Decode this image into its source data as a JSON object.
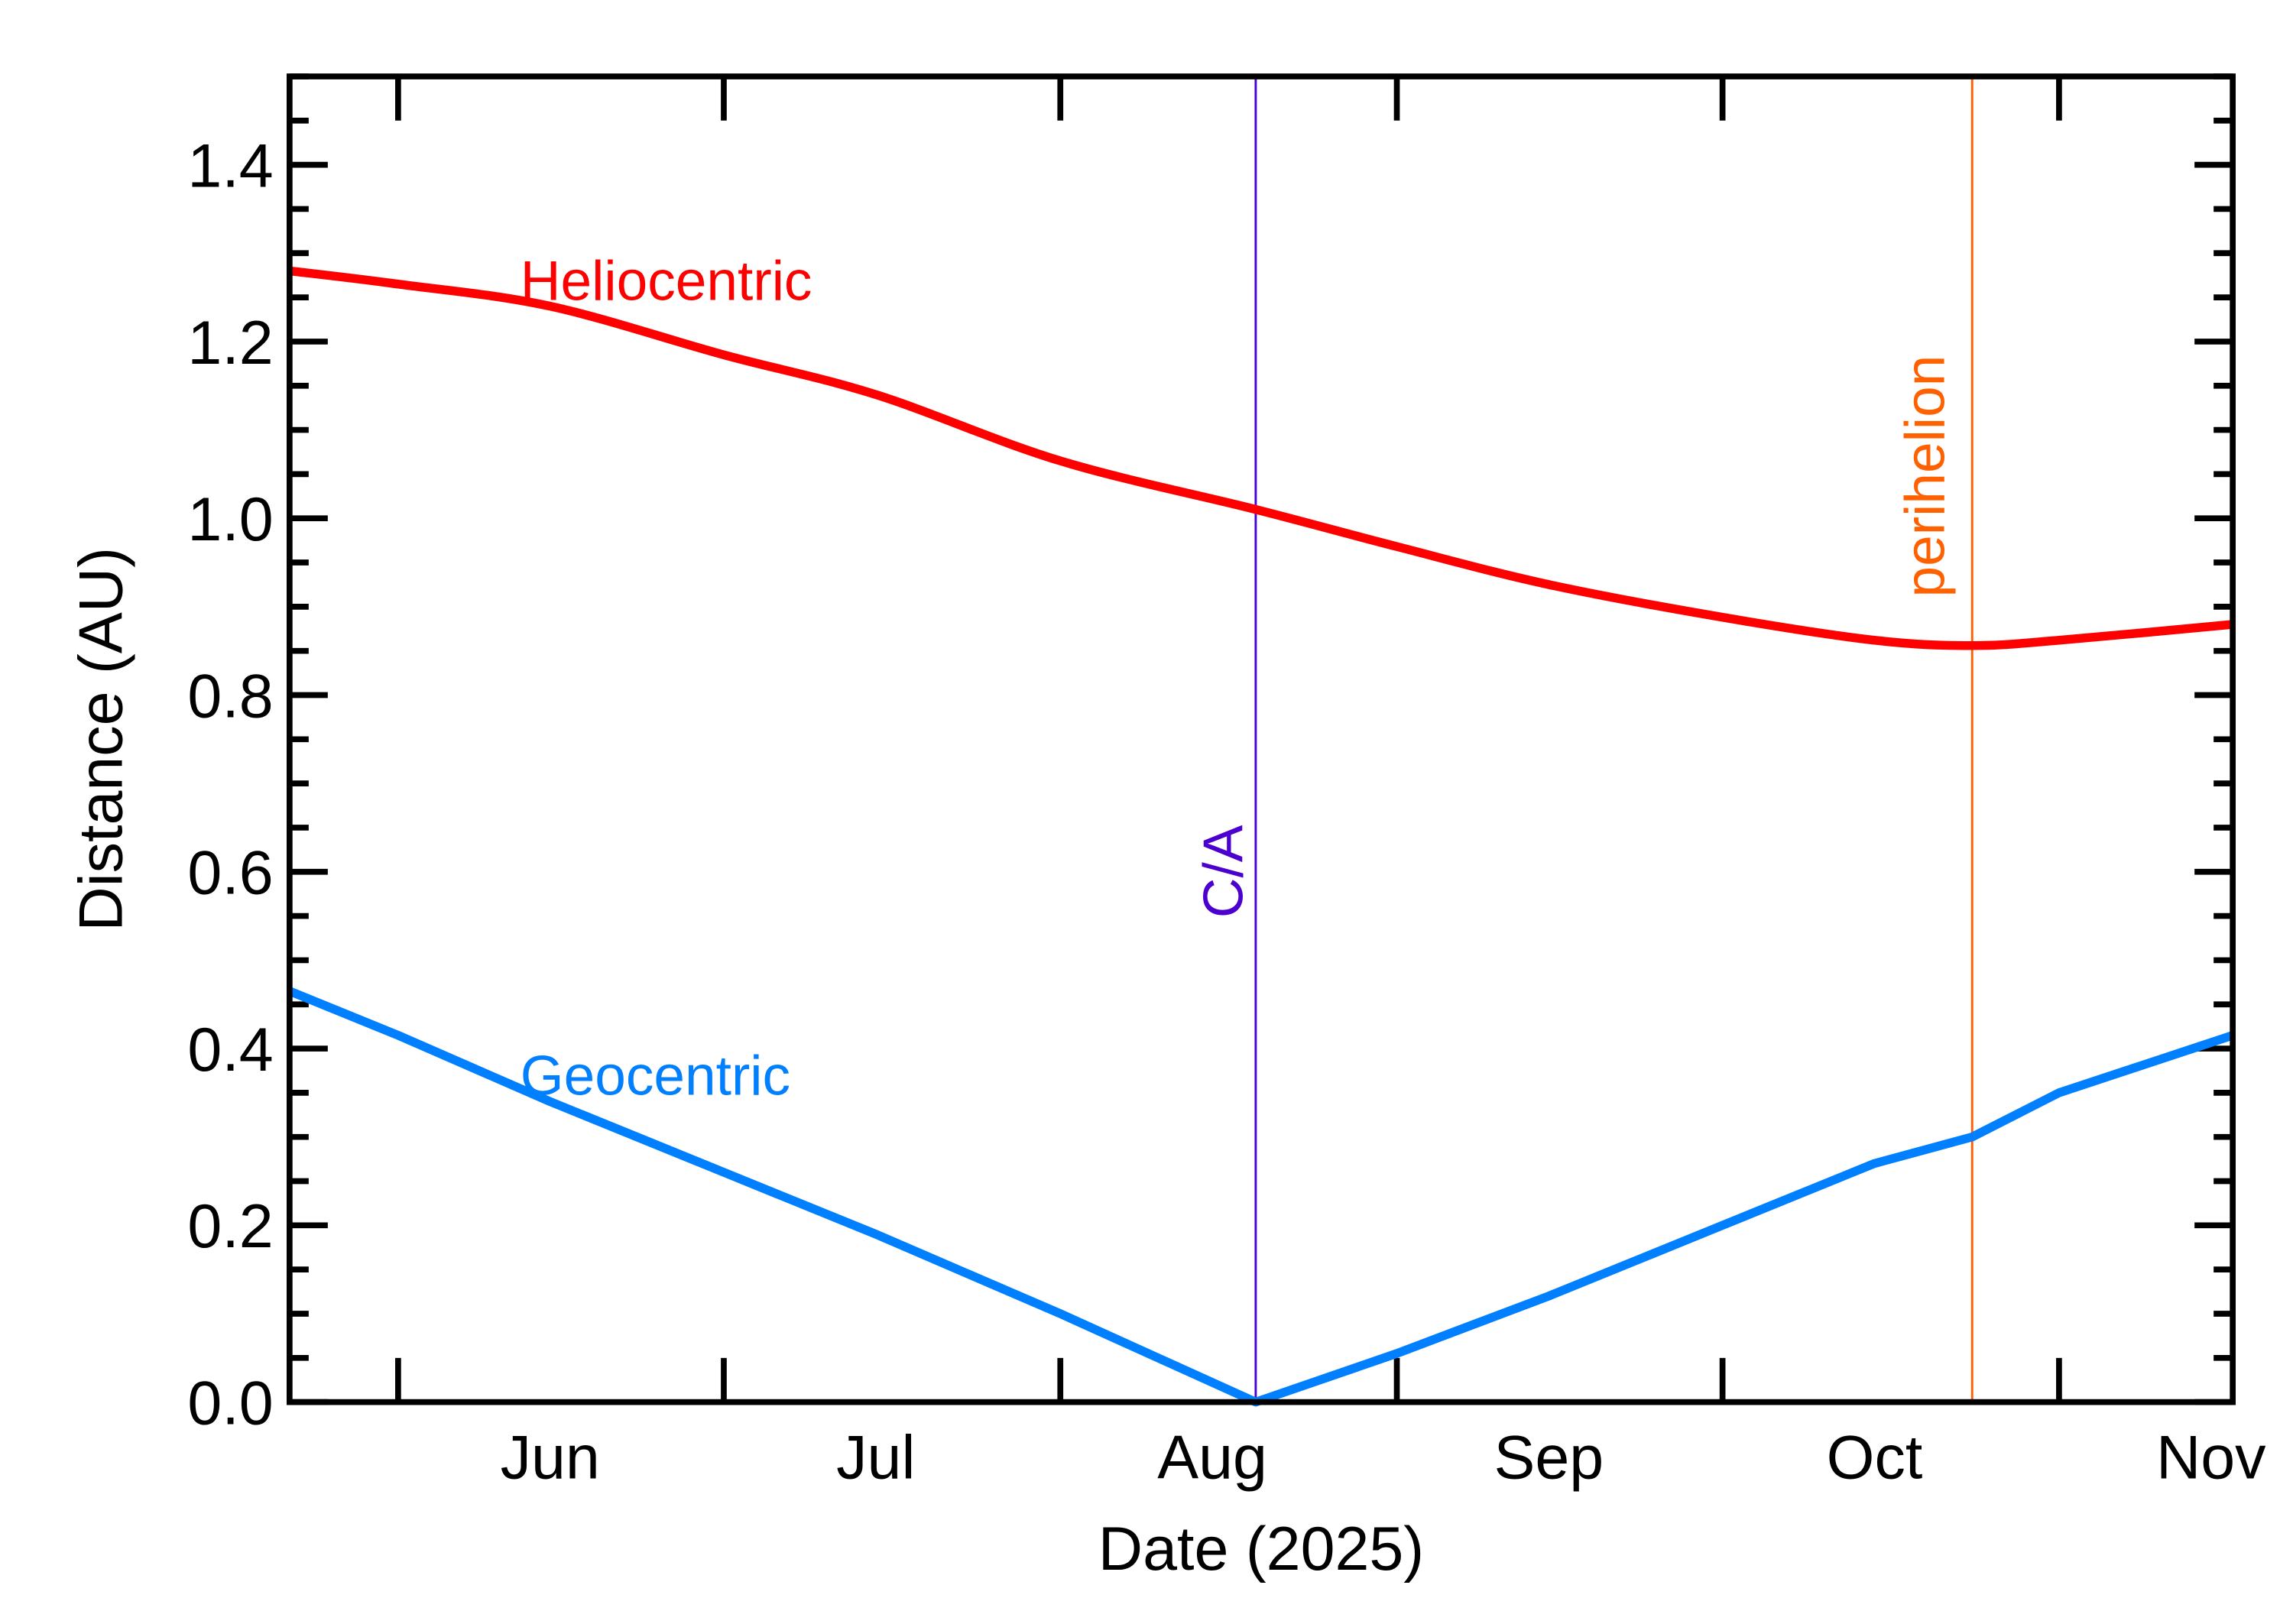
{
  "chart_data": {
    "type": "line",
    "xlabel": "Date (2025)",
    "ylabel": "Distance (AU)",
    "xlim": [
      "2025-05-22",
      "2025-11-17"
    ],
    "ylim": [
      0,
      1.5
    ],
    "grid": false,
    "x_tick_labels": [
      {
        "label": "Jun",
        "date": "2025-06-15"
      },
      {
        "label": "Jul",
        "date": "2025-07-15"
      },
      {
        "label": "Aug",
        "date": "2025-08-15"
      },
      {
        "label": "Sep",
        "date": "2025-09-15"
      },
      {
        "label": "Oct",
        "date": "2025-10-15"
      },
      {
        "label": "Nov",
        "date": "2025-11-15"
      }
    ],
    "x_major_ticks": [
      "2025-06-01",
      "2025-07-01",
      "2025-08-01",
      "2025-09-01",
      "2025-10-01",
      "2025-11-01"
    ],
    "y_tick_labels": [
      "0.0",
      "0.2",
      "0.4",
      "0.6",
      "0.8",
      "1.0",
      "1.2",
      "1.4"
    ],
    "x": [
      "2025-05-22",
      "2025-06-01",
      "2025-06-15",
      "2025-07-01",
      "2025-07-15",
      "2025-08-01",
      "2025-08-19",
      "2025-09-01",
      "2025-09-15",
      "2025-10-01",
      "2025-10-15",
      "2025-10-24",
      "2025-11-01",
      "2025-11-17"
    ],
    "series": [
      {
        "name": "Heliocentric",
        "color": "#ff0000",
        "values": [
          1.28,
          1.265,
          1.24,
          1.185,
          1.14,
          1.065,
          1.01,
          0.968,
          0.925,
          0.888,
          0.862,
          0.856,
          0.862,
          0.88
        ]
      },
      {
        "name": "Geocentric",
        "color": "#0080ff",
        "values": [
          0.465,
          0.415,
          0.34,
          0.26,
          0.19,
          0.1,
          0.0,
          0.055,
          0.12,
          0.2,
          0.27,
          0.3,
          0.35,
          0.415
        ]
      }
    ],
    "annotations": [
      {
        "label": "C/A",
        "date": "2025-08-19",
        "color": "#4b00d0"
      },
      {
        "label": "perihelion",
        "date": "2025-10-24",
        "color": "#ff6000"
      }
    ]
  }
}
